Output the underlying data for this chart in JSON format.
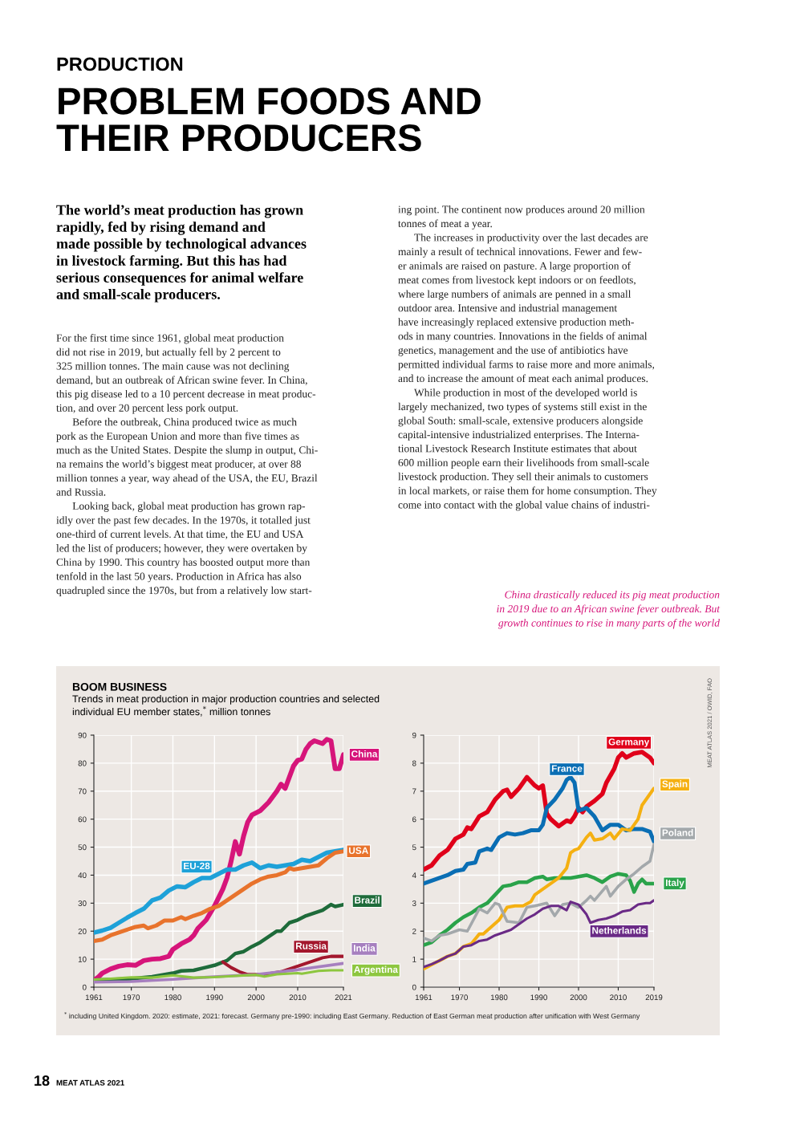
{
  "chart_data": [
    {
      "type": "line",
      "title": "BOOM BUSINESS",
      "subtitle": "Trends in meat production in major production countries and selected\nindividual EU member states,$^{*}$ million tonnes",
      "xlim": [
        1961,
        2021
      ],
      "xticks": [
        1961,
        1970,
        1980,
        1990,
        2000,
        2010,
        2021
      ],
      "ylim": [
        0,
        90
      ],
      "yticks": [
        0,
        10,
        20,
        30,
        40,
        50,
        60,
        70,
        80,
        90
      ],
      "grid": true,
      "line_style": "solid",
      "series": [
        {
          "name": "China",
          "color": "#d6157a",
          "x": [
            1961,
            1962,
            1963,
            1965,
            1967,
            1969,
            1971,
            1973,
            1975,
            1977,
            1979,
            1980,
            1982,
            1984,
            1985,
            1986,
            1988,
            1990,
            1992,
            1993,
            1994,
            1995,
            1996,
            1997,
            1998,
            1999,
            2001,
            2003,
            2005,
            2006,
            2007,
            2008,
            2009,
            2010,
            2011,
            2012,
            2013,
            2014,
            2015,
            2016,
            2017,
            2018,
            2019,
            2020,
            2021
          ],
          "values": [
            2.5,
            3.5,
            5,
            6.5,
            7.5,
            8,
            7.8,
            9.5,
            10,
            10.2,
            11,
            13.5,
            15.5,
            17,
            18.5,
            21,
            24,
            29,
            35,
            39,
            45,
            52,
            47.5,
            54,
            59,
            61.5,
            63,
            66,
            70,
            72.5,
            71,
            75,
            79,
            81,
            81.5,
            85,
            87,
            88,
            87.5,
            87,
            88.5,
            88,
            78,
            78,
            83
          ]
        },
        {
          "name": "EU-28",
          "color": "#1ea1d8",
          "x": [
            1961,
            1963,
            1965,
            1967,
            1969,
            1971,
            1973,
            1975,
            1977,
            1979,
            1981,
            1983,
            1985,
            1987,
            1989,
            1991,
            1993,
            1995,
            1997,
            1999,
            2001,
            2003,
            2005,
            2007,
            2009,
            2011,
            2013,
            2015,
            2017,
            2019,
            2021
          ],
          "values": [
            19.5,
            20.2,
            21.2,
            23,
            24.8,
            26.5,
            28,
            31,
            32,
            34.5,
            36,
            35.7,
            37.5,
            39,
            39,
            40.5,
            42,
            42,
            43.5,
            44.5,
            42.5,
            43.5,
            43,
            43.5,
            44,
            45.5,
            45,
            46.5,
            48,
            48.5,
            49
          ]
        },
        {
          "name": "USA",
          "color": "#e8732c",
          "x": [
            1961,
            1963,
            1965,
            1967,
            1969,
            1971,
            1973,
            1974,
            1976,
            1978,
            1980,
            1982,
            1983,
            1985,
            1987,
            1989,
            1991,
            1993,
            1995,
            1997,
            1999,
            2001,
            2003,
            2005,
            2007,
            2008,
            2009,
            2011,
            2013,
            2015,
            2017,
            2019,
            2021
          ],
          "values": [
            16.5,
            17,
            18.5,
            19.5,
            20.5,
            21.5,
            22,
            21,
            22,
            23.8,
            23.8,
            25,
            24.3,
            25.5,
            26.5,
            28,
            29,
            31,
            33,
            35,
            37,
            38.5,
            39.5,
            40,
            41,
            42.5,
            42,
            42.5,
            43,
            43.5,
            46,
            48,
            48.5
          ]
        },
        {
          "name": "Brazil",
          "color": "#1e6b3a",
          "x": [
            1961,
            1970,
            1975,
            1980,
            1982,
            1985,
            1990,
            1993,
            1995,
            1997,
            1999,
            2001,
            2003,
            2005,
            2006,
            2008,
            2010,
            2012,
            2014,
            2016,
            2018,
            2019,
            2021
          ],
          "values": [
            2.5,
            3,
            3.7,
            5,
            5.8,
            6,
            7.8,
            9.5,
            12,
            12.7,
            14.5,
            16,
            18,
            20,
            20,
            23,
            24,
            25.5,
            26.5,
            27.5,
            29.5,
            28.8,
            29.5
          ]
        },
        {
          "name": "Russia",
          "color": "#a3172d",
          "x": [
            1992,
            1994,
            1996,
            1998,
            2000,
            2002,
            2004,
            2006,
            2008,
            2010,
            2012,
            2014,
            2016,
            2018,
            2021
          ],
          "values": [
            9,
            7,
            5.5,
            4.5,
            4.5,
            4.5,
            5,
            5.5,
            6.5,
            7.5,
            8.5,
            9.5,
            10.5,
            11,
            11
          ]
        },
        {
          "name": "India",
          "color": "#a67fbf",
          "x": [
            1961,
            1970,
            1980,
            1990,
            2000,
            2010,
            2021
          ],
          "values": [
            1.8,
            2,
            2.8,
            3.7,
            4.5,
            6.2,
            8.5
          ]
        },
        {
          "name": "Argentina",
          "color": "#8dc63f",
          "x": [
            1961,
            1965,
            1970,
            1975,
            1980,
            1985,
            1990,
            1995,
            2000,
            2002,
            2005,
            2010,
            2011,
            2015,
            2018,
            2021
          ],
          "values": [
            2.7,
            3,
            3.5,
            3.4,
            4.2,
            3.4,
            3.6,
            4,
            4.4,
            3.8,
            4.6,
            5,
            4.8,
            5.8,
            6,
            6
          ]
        }
      ],
      "annotations": [
        "PRODUCTION",
        "PROBLEM FOODS AND\nTHEIR PRODUCERS",
        "The world’s meat production has grown\nrapidly, fed by rising demand and\nmade possible by technological advances\nin livestock farming. But this has had\nserious consequences for animal welfare\nand small-scale producers.",
        "For the first time since 1961, global meat production\ndid not rise in 2019, but actually fell by 2 percent to\n325 million tonnes. The main cause was not declining\ndemand, but an outbreak of African swine fever. In China,\nthis pig disease led to a 10 percent decrease in meat produc-\ntion, and over 20 percent less pork output.\n      Before the outbreak, China produced twice as much\npork as the European Union and more than five times as\nmuch as the United States. Despite the slump in output, Chi-\nna remains the world’s biggest meat producer, at over 88\nmillion tonnes a year, way ahead of the USA, the EU, Brazil\nand Russia.\n      Looking back, global meat production has grown rap-\nidly over the past few decades. In the 1970s, it totalled just\none-third of current levels. At that time, the EU and USA\nled the list of producers; however, they were overtaken by\nChina by 1990. This country has boosted output more than\ntenfold in the last 50 years. Production in Africa has also\nquadrupled since the 1970s, but from a relatively low start-",
        "ing point. The continent now produces around 20 million\ntonnes of meat a year.\n      The increases in productivity over the last decades are\nmainly a result of technical innovations. Fewer and few-\ner animals are raised on pasture. A large proportion of\nmeat comes from livestock kept indoors or on feedlots,\nwhere large numbers of animals are penned in a small\noutdoor area. Intensive and industrial management\nhave increasingly replaced extensive production meth-\nods in many countries. Innovations in the fields of animal\ngenetics, management and the use of antibiotics have\npermitted individual farms to raise more and more animals,\nand to increase the amount of meat each animal produces.\n      While production in most of the developed world is\nlargely mechanized, two types of systems still exist in the\nglobal South: small-scale, extensive producers alongside\ncapital-intensive industrialized enterprises. The Interna-\ntional Livestock Research Institute estimates that about\n600 million people earn their livelihoods from small-scale\nlivestock production. They sell their animals to customers\nin local markets, or raise them for home consumption. They\ncome into contact with the global value chains of industri-",
        "China drastically reduced its pig meat production\nin 2019 due to an African swine fever outbreak. But\ngrowth continues to rise in many parts of the world",
        "$^{*}$ including United Kingdom. 2020: estimate, 2021: forecast. Germany pre-1990: including East Germany. Reduction of East German meat production after unification with West Germany",
        "MEAT ATLAS 2021 / OWID, FAO",
        "18",
        "MEAT ATLAS 2021"
      ]
    },
    {
      "type": "line",
      "xlim": [
        1961,
        2019
      ],
      "xticks": [
        1961,
        1970,
        1980,
        1990,
        2000,
        2010,
        2019
      ],
      "ylim": [
        0,
        9
      ],
      "yticks": [
        0,
        1,
        2,
        3,
        4,
        5,
        6,
        7,
        8,
        9
      ],
      "grid": true,
      "line_style": "solid",
      "series": [
        {
          "name": "Germany",
          "color": "#e0001a",
          "x": [
            1961,
            1963,
            1965,
            1967,
            1969,
            1971,
            1972,
            1973,
            1975,
            1977,
            1979,
            1981,
            1982,
            1983,
            1985,
            1987,
            1989,
            1990,
            1991,
            1992,
            1993,
            1995,
            1997,
            1998,
            1999,
            2000,
            2001,
            2002,
            2004,
            2006,
            2007,
            2009,
            2010,
            2011,
            2012,
            2014,
            2016,
            2018,
            2019
          ],
          "values": [
            4.2,
            4.35,
            4.7,
            4.9,
            5.3,
            5.45,
            5.7,
            5.65,
            6.1,
            6.25,
            6.7,
            7.0,
            7.05,
            6.8,
            7.1,
            7.5,
            7.2,
            7.1,
            7.2,
            6.2,
            6.0,
            5.75,
            5.95,
            5.9,
            6.1,
            6.4,
            6.25,
            6.45,
            6.65,
            6.9,
            7.3,
            7.8,
            8.2,
            8.35,
            8.2,
            8.35,
            8.4,
            8.2,
            8.0
          ]
        },
        {
          "name": "France",
          "color": "#0a6eb4",
          "x": [
            1961,
            1963,
            1965,
            1967,
            1969,
            1971,
            1972,
            1974,
            1975,
            1977,
            1978,
            1980,
            1982,
            1984,
            1986,
            1988,
            1990,
            1991,
            1992,
            1994,
            1996,
            1997,
            1998,
            1999,
            2000,
            2002,
            2004,
            2006,
            2008,
            2010,
            2012,
            2014,
            2016,
            2018,
            2019
          ],
          "values": [
            3.7,
            3.8,
            3.9,
            4.0,
            4.15,
            4.2,
            4.4,
            4.45,
            4.85,
            4.95,
            4.9,
            5.35,
            5.5,
            5.45,
            5.5,
            5.6,
            5.6,
            5.8,
            6.4,
            6.7,
            7.1,
            7.4,
            7.5,
            7.3,
            6.3,
            6.4,
            6.1,
            5.6,
            5.8,
            5.8,
            5.6,
            5.65,
            5.65,
            5.55,
            5.2
          ]
        },
        {
          "name": "Italy",
          "color": "#2aa34a",
          "x": [
            1961,
            1963,
            1965,
            1967,
            1969,
            1971,
            1973,
            1975,
            1977,
            1979,
            1981,
            1983,
            1985,
            1987,
            1989,
            1991,
            1992,
            1994,
            1996,
            1998,
            2000,
            2002,
            2004,
            2006,
            2008,
            2010,
            2012,
            2013,
            2014,
            2015,
            2016,
            2017,
            2019
          ],
          "values": [
            1.5,
            1.6,
            1.85,
            2.05,
            2.3,
            2.5,
            2.65,
            2.85,
            3.0,
            3.3,
            3.6,
            3.65,
            3.75,
            3.75,
            3.9,
            3.95,
            3.85,
            3.9,
            3.9,
            3.9,
            3.95,
            4.0,
            3.9,
            3.75,
            3.95,
            4.05,
            4.0,
            3.8,
            3.4,
            3.7,
            3.85,
            3.7,
            3.7
          ]
        },
        {
          "name": "Spain",
          "color": "#f5b011",
          "x": [
            1961,
            1963,
            1965,
            1967,
            1969,
            1971,
            1973,
            1975,
            1976,
            1978,
            1980,
            1982,
            1984,
            1986,
            1988,
            1989,
            1991,
            1993,
            1995,
            1997,
            1998,
            1999,
            2000,
            2002,
            2003,
            2004,
            2006,
            2008,
            2009,
            2011,
            2013,
            2015,
            2016,
            2017,
            2019
          ],
          "values": [
            0.65,
            0.8,
            0.95,
            1.1,
            1.2,
            1.45,
            1.55,
            1.9,
            1.9,
            2.15,
            2.4,
            2.85,
            2.9,
            2.9,
            3.05,
            3.3,
            3.5,
            3.7,
            3.9,
            4.25,
            4.8,
            4.9,
            4.95,
            5.35,
            5.5,
            5.25,
            5.3,
            5.5,
            5.3,
            5.65,
            5.6,
            6.0,
            6.5,
            6.7,
            7.1
          ]
        },
        {
          "name": "Poland",
          "color": "#a3a8ab",
          "x": [
            1961,
            1963,
            1965,
            1967,
            1970,
            1972,
            1975,
            1977,
            1979,
            1980,
            1982,
            1985,
            1987,
            1989,
            1992,
            1994,
            1996,
            1998,
            2000,
            2002,
            2003,
            2004,
            2007,
            2008,
            2010,
            2012,
            2014,
            2016,
            2018,
            2019
          ],
          "values": [
            1.75,
            1.65,
            1.85,
            1.9,
            2.05,
            2.0,
            2.8,
            2.65,
            3.0,
            2.95,
            2.35,
            2.3,
            2.85,
            2.9,
            3.0,
            2.55,
            2.95,
            3.0,
            2.85,
            3.1,
            3.25,
            3.1,
            3.6,
            3.25,
            3.6,
            3.85,
            4.05,
            4.3,
            4.5,
            5.1
          ]
        },
        {
          "name": "Netherlands",
          "color": "#6a2a86",
          "x": [
            1961,
            1963,
            1965,
            1967,
            1969,
            1971,
            1973,
            1975,
            1977,
            1979,
            1981,
            1983,
            1985,
            1987,
            1989,
            1991,
            1993,
            1995,
            1997,
            1998,
            2000,
            2002,
            2003,
            2005,
            2007,
            2009,
            2011,
            2013,
            2015,
            2017,
            2018,
            2019
          ],
          "values": [
            0.72,
            0.82,
            0.95,
            1.1,
            1.2,
            1.45,
            1.5,
            1.65,
            1.7,
            1.85,
            1.95,
            2.05,
            2.25,
            2.45,
            2.6,
            2.8,
            2.9,
            2.9,
            2.75,
            3.05,
            2.95,
            2.6,
            2.3,
            2.4,
            2.45,
            2.55,
            2.7,
            2.75,
            2.95,
            3.0,
            3.0,
            3.1
          ]
        }
      ]
    }
  ]
}
